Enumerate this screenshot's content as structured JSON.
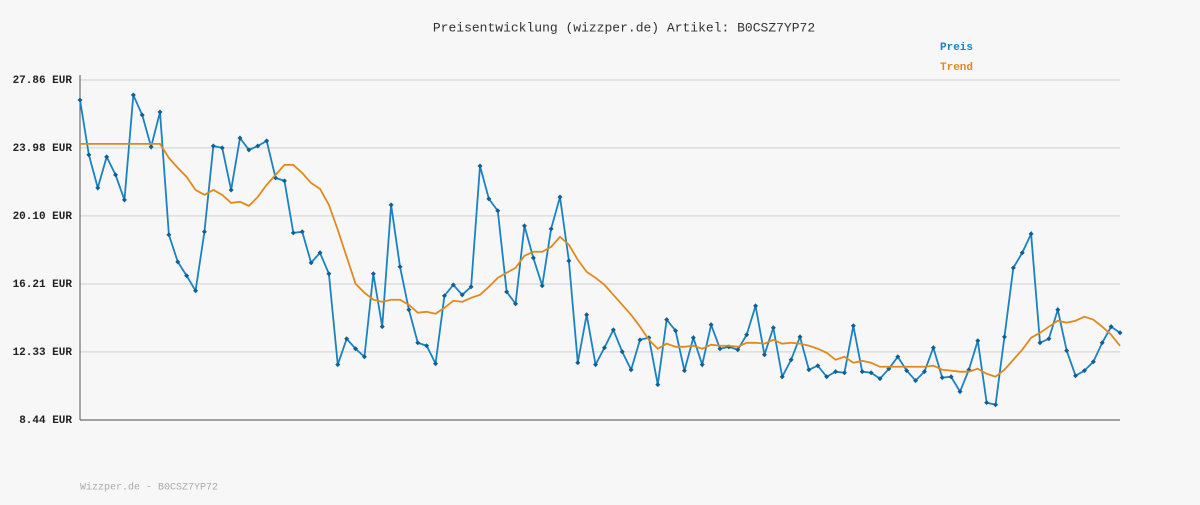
{
  "chart_data": {
    "type": "line",
    "title": "Preisentwicklung (wizzper.de) Artikel: B0CSZ7YP72",
    "footer": "Wizzper.de - B0CSZ7YP72",
    "ylim": [
      8.44,
      27.86
    ],
    "yticks": [
      {
        "value": 8.44,
        "label": "8.44 EUR"
      },
      {
        "value": 12.33,
        "label": "12.33 EUR"
      },
      {
        "value": 16.21,
        "label": "16.21 EUR"
      },
      {
        "value": 20.1,
        "label": "20.10 EUR"
      },
      {
        "value": 23.98,
        "label": "23.98 EUR"
      },
      {
        "value": 27.86,
        "label": "27.86 EUR"
      }
    ],
    "grid": true,
    "legend": "top-right",
    "series": [
      {
        "name": "Preis",
        "color": "#1a82c4",
        "markers": true,
        "values": [
          26.72,
          23.58,
          21.7,
          23.47,
          22.44,
          21.01,
          27.0,
          25.86,
          24.04,
          26.03,
          19.02,
          17.47,
          16.68,
          15.82,
          19.19,
          24.09,
          23.98,
          21.58,
          24.55,
          23.87,
          24.09,
          24.38,
          22.27,
          22.1,
          19.13,
          19.19,
          17.42,
          17.99,
          16.79,
          11.6,
          13.08,
          12.51,
          12.05,
          16.79,
          13.77,
          20.73,
          17.19,
          14.74,
          12.85,
          12.68,
          11.66,
          15.54,
          16.16,
          15.59,
          16.05,
          22.95,
          21.07,
          20.39,
          15.76,
          15.08,
          19.53,
          17.7,
          16.11,
          19.36,
          21.18,
          17.53,
          11.71,
          14.45,
          11.6,
          12.57,
          13.59,
          12.34,
          11.31,
          13.02,
          13.14,
          10.46,
          14.17,
          13.54,
          11.26,
          13.14,
          11.6,
          13.88,
          12.51,
          12.62,
          12.45,
          13.31,
          14.96,
          12.17,
          13.71,
          10.91,
          11.88,
          13.19,
          11.31,
          11.54,
          10.91,
          11.2,
          11.14,
          13.82,
          11.2,
          11.14,
          10.8,
          11.37,
          12.05,
          11.26,
          10.69,
          11.2,
          12.57,
          10.86,
          10.91,
          10.06,
          11.31,
          12.97,
          9.43,
          9.31,
          13.19,
          17.13,
          17.99,
          19.07,
          12.85,
          13.08,
          14.74,
          12.4,
          10.97,
          11.26,
          11.77,
          12.85,
          13.77,
          13.42
        ]
      },
      {
        "name": "Trend",
        "color": "#e08a1e",
        "markers": false,
        "values": [
          24.21,
          24.21,
          24.21,
          24.21,
          24.21,
          24.21,
          24.21,
          24.21,
          24.21,
          24.21,
          23.41,
          22.84,
          22.32,
          21.58,
          21.3,
          21.58,
          21.3,
          20.84,
          20.9,
          20.67,
          21.18,
          21.87,
          22.44,
          23.01,
          23.01,
          22.55,
          21.98,
          21.64,
          20.73,
          19.3,
          17.76,
          16.22,
          15.71,
          15.31,
          15.19,
          15.31,
          15.31,
          15.02,
          14.57,
          14.62,
          14.51,
          14.85,
          15.25,
          15.19,
          15.42,
          15.59,
          16.05,
          16.56,
          16.85,
          17.13,
          17.82,
          18.05,
          18.05,
          18.33,
          18.9,
          18.45,
          17.59,
          16.9,
          16.56,
          16.16,
          15.59,
          15.02,
          14.45,
          13.77,
          13.02,
          12.51,
          12.8,
          12.62,
          12.62,
          12.68,
          12.51,
          12.74,
          12.68,
          12.68,
          12.62,
          12.85,
          12.85,
          12.8,
          13.02,
          12.8,
          12.85,
          12.8,
          12.68,
          12.51,
          12.28,
          11.88,
          12.05,
          11.71,
          11.82,
          11.71,
          11.48,
          11.48,
          11.48,
          11.48,
          11.48,
          11.48,
          11.54,
          11.31,
          11.26,
          11.2,
          11.2,
          11.37,
          11.08,
          10.91,
          11.31,
          11.88,
          12.45,
          13.14,
          13.42,
          13.77,
          14.11,
          14.0,
          14.11,
          14.34,
          14.17,
          13.77,
          13.31,
          12.68
        ]
      }
    ]
  }
}
